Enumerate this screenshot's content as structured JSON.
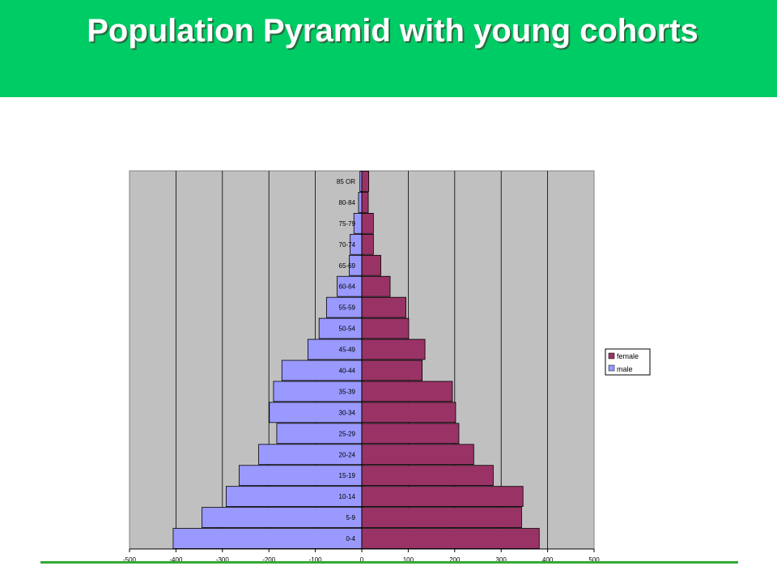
{
  "slide": {
    "title": "Population Pyramid with young cohorts",
    "header_color": "#00cc66"
  },
  "chart_data": {
    "type": "bar",
    "orientation": "horizontal",
    "title": "",
    "categories": [
      "0-4",
      "5-9",
      "10-14",
      "15-19",
      "20-24",
      "25-29",
      "30-34",
      "35-39",
      "40-44",
      "45-49",
      "50-54",
      "55-59",
      "60-64",
      "65-69",
      "70-74",
      "75-79",
      "80-84",
      "85 OR"
    ],
    "series": [
      {
        "name": "female",
        "color": "#993366",
        "values": [
          382,
          344,
          347,
          283,
          241,
          209,
          202,
          195,
          130,
          136,
          101,
          95,
          61,
          41,
          25,
          25,
          14,
          15
        ]
      },
      {
        "name": "male",
        "color": "#9999ff",
        "values": [
          -406,
          -344,
          -292,
          -264,
          -222,
          -183,
          -199,
          -190,
          -172,
          -116,
          -92,
          -76,
          -53,
          -27,
          -25,
          -17,
          -7,
          -4
        ]
      }
    ],
    "x_ticks": [
      "-500",
      "-400",
      "-300",
      "-200",
      "-100",
      "0",
      "100",
      "200",
      "300",
      "400",
      "500"
    ],
    "xlim": [
      -500,
      500
    ],
    "grid": "vertical",
    "legend_position": "right",
    "plot_background": "#c0c0c0"
  }
}
